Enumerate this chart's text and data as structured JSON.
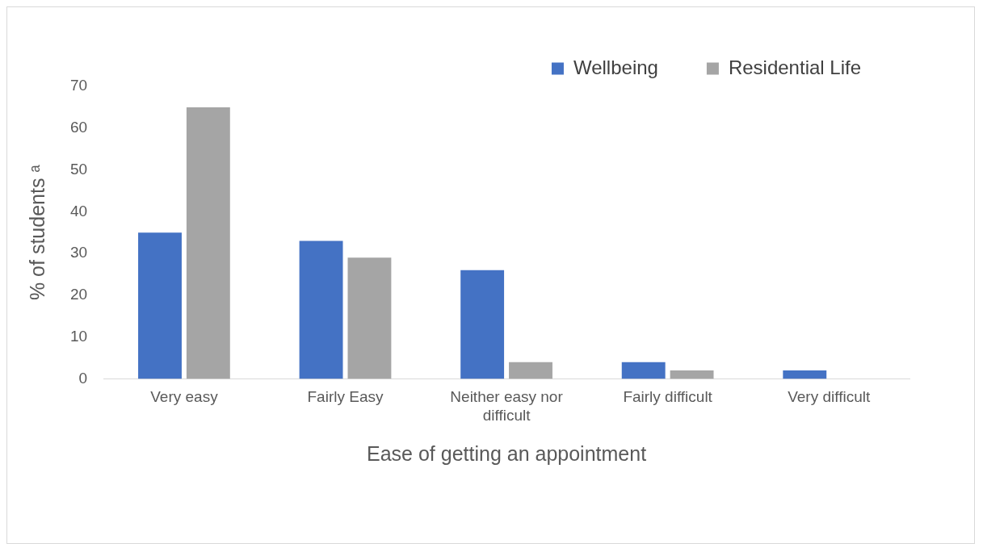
{
  "chart_data": {
    "type": "bar",
    "xlabel": "Ease of getting an appointment",
    "ylabel": "% of students ᵃ",
    "categories": [
      "Very easy",
      "Fairly Easy",
      "Neither easy nor difficult",
      "Fairly difficult",
      "Very difficult"
    ],
    "series": [
      {
        "name": "Wellbeing",
        "color": "#4472c4",
        "values": [
          35,
          33,
          26,
          4,
          2
        ]
      },
      {
        "name": "Residential Life",
        "color": "#a5a5a5",
        "values": [
          65,
          29,
          4,
          2,
          0
        ]
      }
    ],
    "ylim": [
      0,
      70
    ],
    "yticks": [
      0,
      10,
      20,
      30,
      40,
      50,
      60,
      70
    ],
    "grid": false,
    "legend": "top right"
  }
}
